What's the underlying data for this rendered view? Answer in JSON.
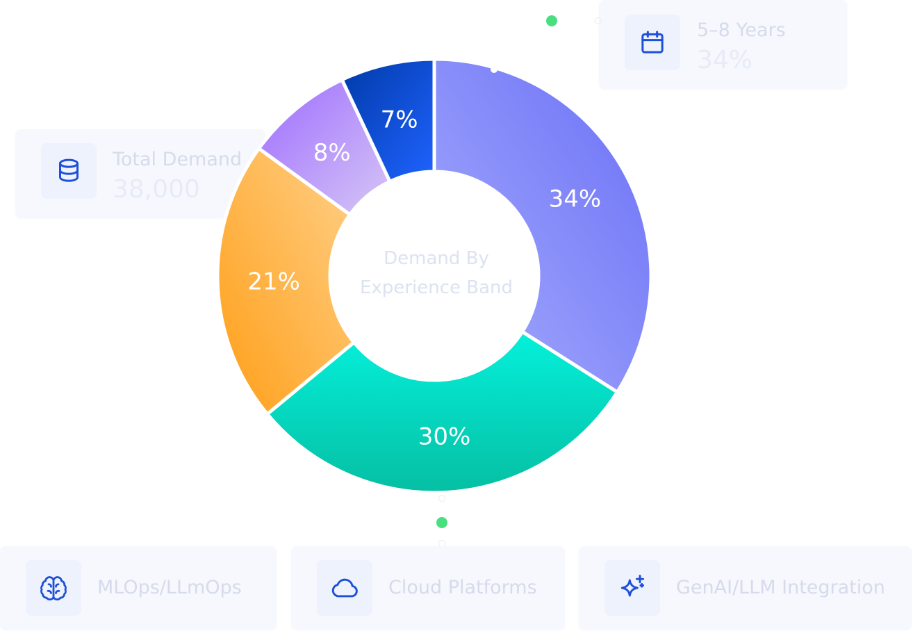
{
  "colors": {
    "accent_icon": "#1d4fd8",
    "status_dot": "#4ade80",
    "seg_3_5": [
      "#a7aefc",
      "#6a6ff6"
    ],
    "seg_8_plus": [
      "#05f0db",
      "#05bfa3"
    ],
    "seg_0_2": [
      "#ffd089",
      "#ff9e16"
    ],
    "seg_intern": [
      "#9d6bff",
      "#d6c7f5"
    ],
    "seg_10_plus": [
      "#003aa8",
      "#1f63ff"
    ]
  },
  "chart_data": {
    "type": "pie",
    "title": "Demand By Experience Band",
    "center_label_lines": [
      "Demand By",
      "Experience Band"
    ],
    "slices": [
      {
        "value": 34,
        "label": "34%"
      },
      {
        "value": 30,
        "label": "30%"
      },
      {
        "value": 21,
        "label": "21%"
      },
      {
        "value": 8,
        "label": "8%"
      },
      {
        "value": 7,
        "label": "7%"
      }
    ]
  },
  "cards": {
    "experience": {
      "icon": "calendar-icon",
      "label": "5–8 Years",
      "value": "34%"
    },
    "total": {
      "icon": "database-icon",
      "label": "Total Demand",
      "value": "38,000"
    }
  },
  "skills": [
    {
      "icon": "brain-icon",
      "label": "MLOps/LLmOps"
    },
    {
      "icon": "cloud-icon",
      "label": "Cloud Platforms"
    },
    {
      "icon": "sparkles-icon",
      "label": "GenAI/LLM Integration"
    }
  ]
}
